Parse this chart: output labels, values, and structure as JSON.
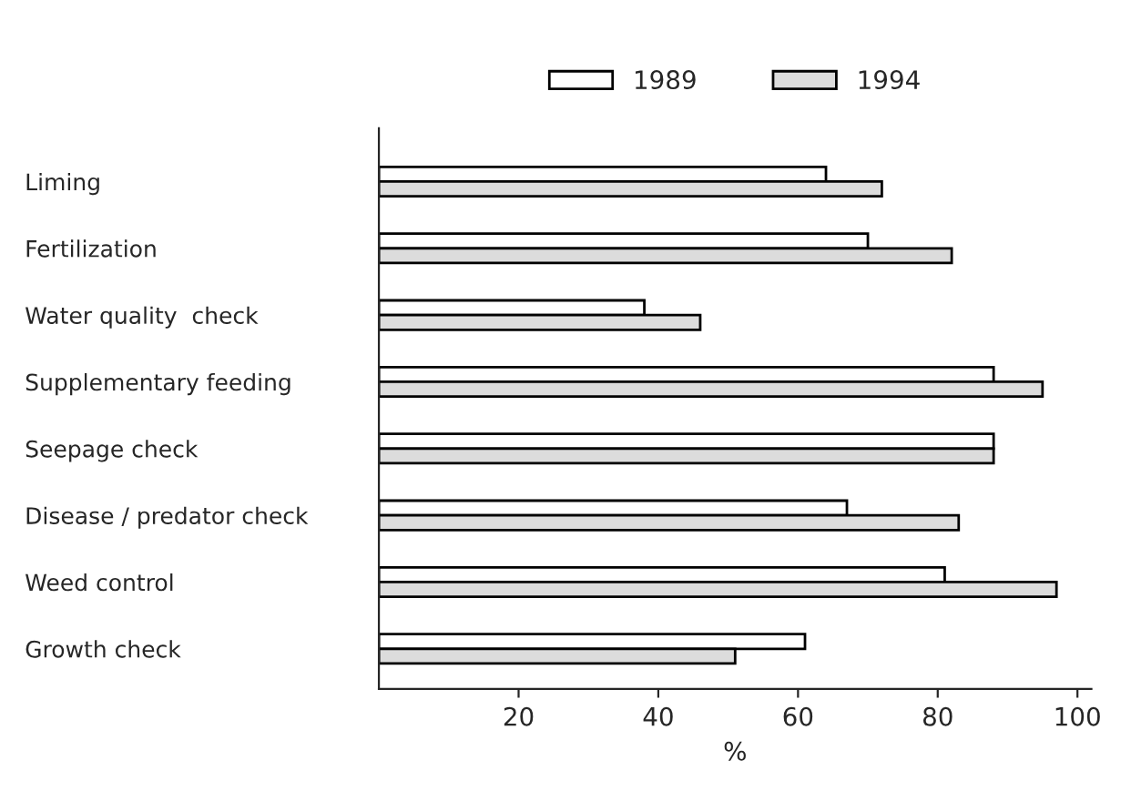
{
  "chart_data": {
    "type": "bar",
    "orientation": "horizontal",
    "xlabel": "%",
    "categories": [
      "Liming",
      "Fertilization",
      "Water quality  check",
      "Supplementary feeding",
      "Seepage check",
      "Disease / predator check",
      "Weed control",
      "Growth check"
    ],
    "series": [
      {
        "name": "1989",
        "color": "#ffffff",
        "values": [
          64,
          70,
          38,
          88,
          88,
          67,
          81,
          61
        ]
      },
      {
        "name": "1994",
        "color": "#dcdcdc",
        "values": [
          72,
          82,
          46,
          95,
          88,
          83,
          97,
          51
        ]
      }
    ],
    "xlim": [
      0,
      102
    ],
    "xticks": [
      20,
      40,
      60,
      80,
      100
    ],
    "grid": false,
    "legend": "top"
  }
}
